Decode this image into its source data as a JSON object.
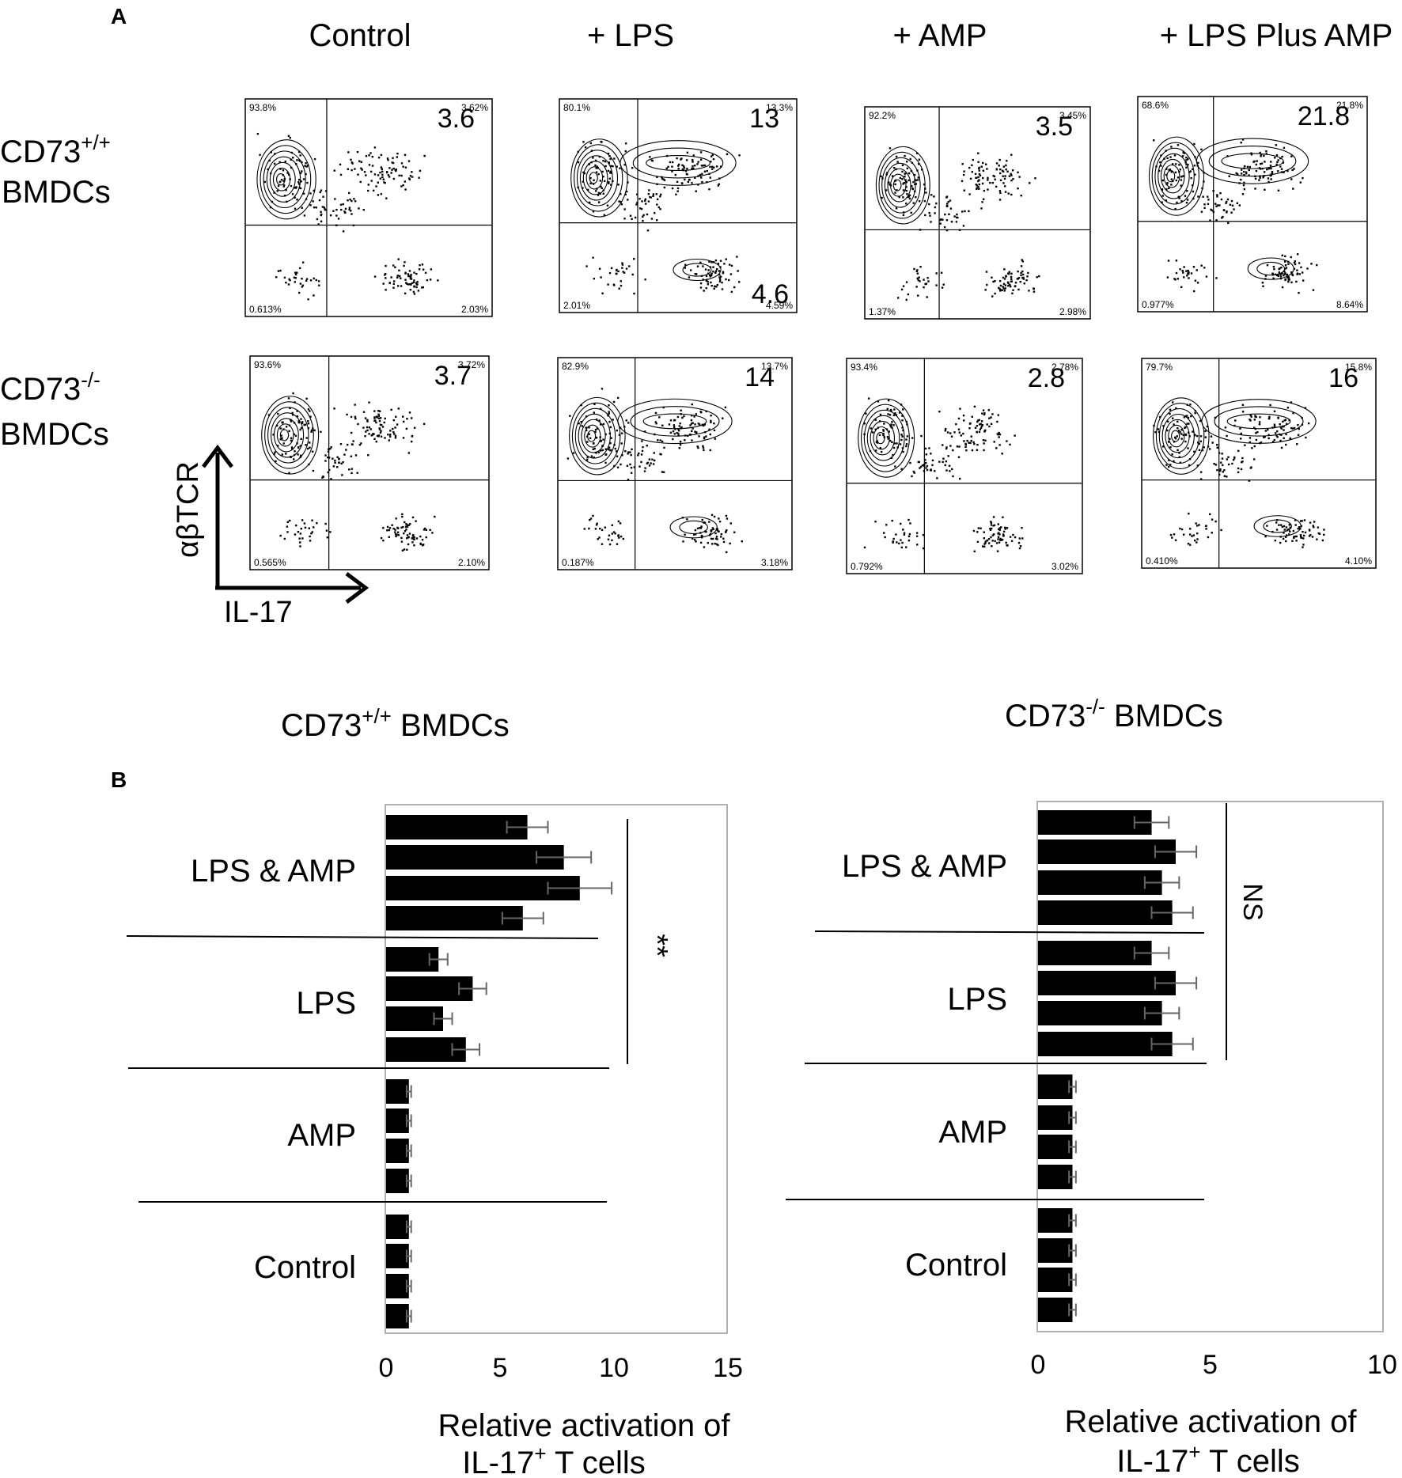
{
  "panel_labels": {
    "a": "A",
    "b": "B"
  },
  "flow": {
    "conditions": [
      "Control",
      "+ LPS",
      "+ AMP",
      "+ LPS Plus AMP"
    ],
    "rows": [
      {
        "label_line1": "CD73",
        "label_sup": "+/+",
        "label_line2": "BMDCs",
        "plots": [
          {
            "ul": "93.8%",
            "ur": "3.62%",
            "ll": "0.613%",
            "lr": "2.03%",
            "big_ur": "3.6",
            "big_lr": ""
          },
          {
            "ul": "80.1%",
            "ur": "13.3%",
            "ll": "2.01%",
            "lr": "4.59%",
            "big_ur": "13",
            "big_lr": "4.6"
          },
          {
            "ul": "92.2%",
            "ur": "3.45%",
            "ll": "1.37%",
            "lr": "2.98%",
            "big_ur": "3.5",
            "big_lr": ""
          },
          {
            "ul": "68.6%",
            "ur": "21.8%",
            "ll": "0.977%",
            "lr": "8.64%",
            "big_ur": "21.8",
            "big_lr": ""
          }
        ]
      },
      {
        "label_line1": "CD73",
        "label_sup": "-/-",
        "label_line2": "BMDCs",
        "plots": [
          {
            "ul": "93.6%",
            "ur": "3.72%",
            "ll": "0.565%",
            "lr": "2.10%",
            "big_ur": "3.7",
            "big_lr": ""
          },
          {
            "ul": "82.9%",
            "ur": "13.7%",
            "ll": "0.187%",
            "lr": "3.18%",
            "big_ur": "14",
            "big_lr": ""
          },
          {
            "ul": "93.4%",
            "ur": "2.78%",
            "ll": "0.792%",
            "lr": "3.02%",
            "big_ur": "2.8",
            "big_lr": ""
          },
          {
            "ul": "79.7%",
            "ur": "15.8%",
            "ll": "0.410%",
            "lr": "4.10%",
            "big_ur": "16",
            "big_lr": ""
          }
        ]
      }
    ],
    "y_axis_label": "αβTCR",
    "x_axis_label": "IL-17"
  },
  "chart_data": [
    {
      "type": "bar",
      "orientation": "horizontal",
      "title_main": "CD73",
      "title_sup": "+/+",
      "title_rest": " BMDCs",
      "xlabel_line1": "Relative activation of",
      "xlabel_line2_main": "IL-17",
      "xlabel_line2_sup": "+",
      "xlabel_line2_rest": " T cells",
      "xlim": [
        0,
        15
      ],
      "xticks": [
        0,
        5,
        10,
        15
      ],
      "groups": [
        {
          "label": "LPS & AMP",
          "values": [
            6.2,
            7.8,
            8.5,
            6.0
          ],
          "errors": [
            0.9,
            1.2,
            1.4,
            0.9
          ]
        },
        {
          "label": "LPS",
          "values": [
            2.3,
            3.8,
            2.5,
            3.5
          ],
          "errors": [
            0.4,
            0.6,
            0.4,
            0.6
          ]
        },
        {
          "label": "AMP",
          "values": [
            1.0,
            1.0,
            1.0,
            1.0
          ],
          "errors": [
            0.1,
            0.1,
            0.1,
            0.1
          ]
        },
        {
          "label": "Control",
          "values": [
            1.0,
            1.0,
            1.0,
            1.0
          ],
          "errors": [
            0.1,
            0.1,
            0.1,
            0.1
          ]
        }
      ],
      "significance": "**",
      "bar_color": "#000000",
      "grid": false
    },
    {
      "type": "bar",
      "orientation": "horizontal",
      "title_main": "CD73",
      "title_sup": "-/-",
      "title_rest": " BMDCs",
      "xlabel_line1": "Relative activation of",
      "xlabel_line2_main": "IL-17",
      "xlabel_line2_sup": "+",
      "xlabel_line2_rest": " T cells",
      "xlim": [
        0,
        10
      ],
      "xticks": [
        0,
        5,
        10
      ],
      "groups": [
        {
          "label": "LPS & AMP",
          "values": [
            3.3,
            4.0,
            3.6,
            3.9
          ],
          "errors": [
            0.5,
            0.6,
            0.5,
            0.6
          ]
        },
        {
          "label": "LPS",
          "values": [
            3.3,
            4.0,
            3.6,
            3.9
          ],
          "errors": [
            0.5,
            0.6,
            0.5,
            0.6
          ]
        },
        {
          "label": "AMP",
          "values": [
            1.0,
            1.0,
            1.0,
            1.0
          ],
          "errors": [
            0.1,
            0.1,
            0.1,
            0.1
          ]
        },
        {
          "label": "Control",
          "values": [
            1.0,
            1.0,
            1.0,
            1.0
          ],
          "errors": [
            0.1,
            0.1,
            0.1,
            0.1
          ]
        }
      ],
      "significance": "NS",
      "bar_color": "#000000",
      "grid": false
    }
  ]
}
